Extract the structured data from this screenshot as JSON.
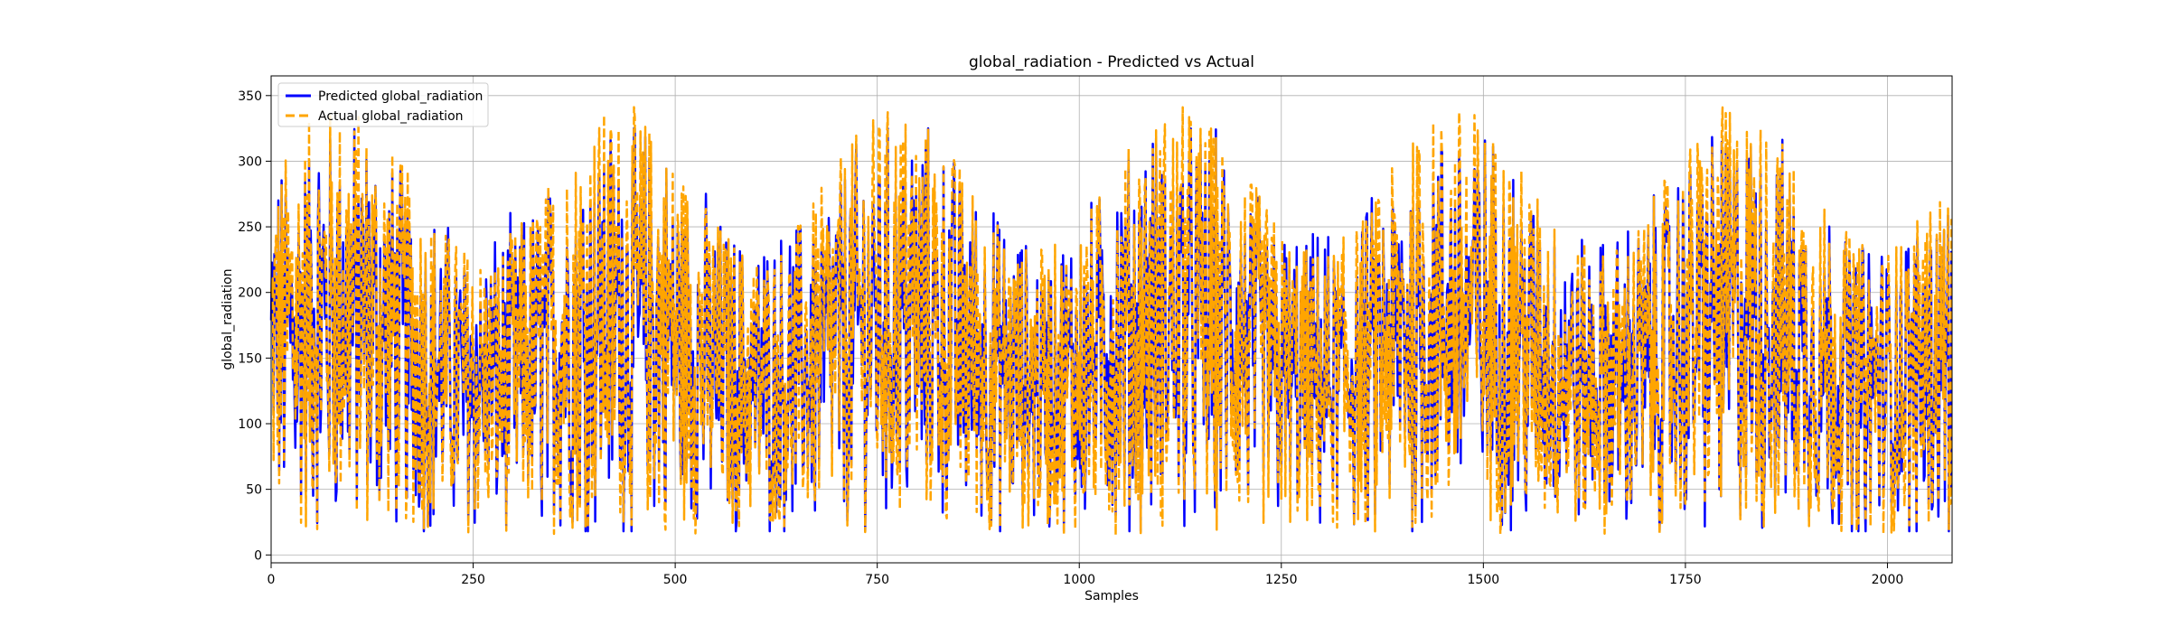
{
  "chart_data": {
    "type": "line",
    "title": "global_radiation - Predicted vs Actual",
    "xlabel": "Samples",
    "ylabel": "global_radiation",
    "xlim": [
      0,
      2080
    ],
    "ylim": [
      -6,
      365
    ],
    "xticks": [
      0,
      250,
      500,
      750,
      1000,
      1250,
      1500,
      1750,
      2000
    ],
    "yticks": [
      0,
      50,
      100,
      150,
      200,
      250,
      300,
      350
    ],
    "grid": true,
    "legend_position": "upper-left",
    "series": [
      {
        "name": "Predicted global_radiation",
        "color": "#0000ff",
        "style": "solid",
        "n_points": 2080
      },
      {
        "name": "Actual global_radiation",
        "color": "#ffa500",
        "style": "dashed",
        "n_points": 2080
      }
    ]
  }
}
